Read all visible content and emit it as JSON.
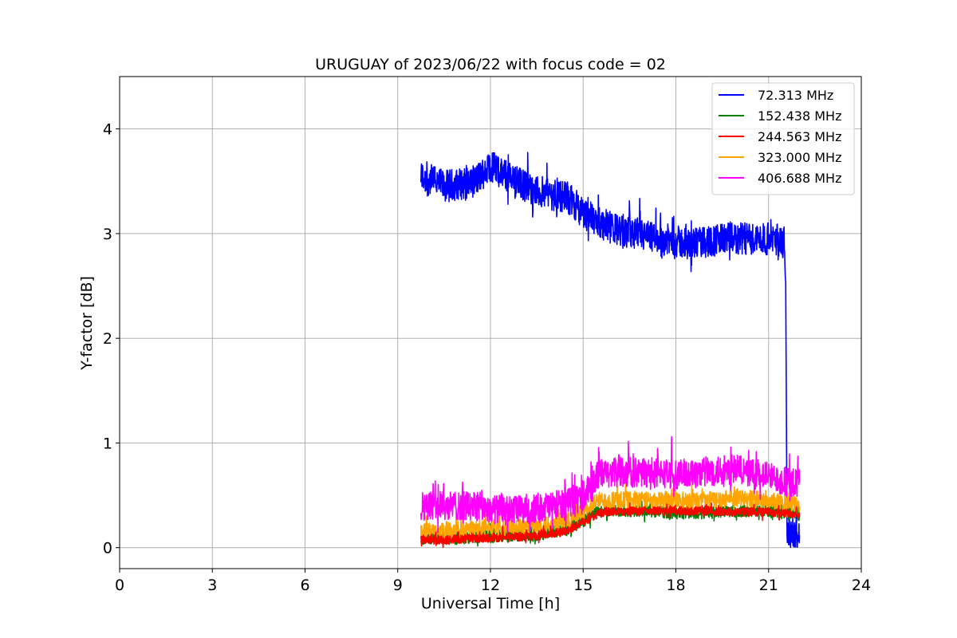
{
  "chart_data": {
    "type": "line",
    "title": "URUGUAY of 2023/06/22 with focus code = 02",
    "xlabel": "Universal Time [h]",
    "ylabel": "Y-factor [dB]",
    "xlim": [
      0,
      24
    ],
    "ylim": [
      -0.2,
      4.5
    ],
    "xticks": [
      0,
      3,
      6,
      9,
      12,
      15,
      18,
      21,
      24
    ],
    "yticks": [
      0,
      1,
      2,
      3,
      4
    ],
    "grid": true,
    "legend_position": "top-right",
    "series": [
      {
        "name": " 72.313 MHz",
        "color": "#0000ff",
        "noise": 0.22,
        "x": [
          9.75,
          10.5,
          11.5,
          12.0,
          12.5,
          13.5,
          14.5,
          15.0,
          15.5,
          16.5,
          17.5,
          18.5,
          19.5,
          20.5,
          21.5,
          21.55,
          21.6,
          21.65,
          22.0
        ],
        "y": [
          3.55,
          3.45,
          3.5,
          3.65,
          3.55,
          3.4,
          3.35,
          3.2,
          3.1,
          3.0,
          2.95,
          2.9,
          2.95,
          2.95,
          2.95,
          2.6,
          0.1,
          0.15,
          0.1
        ]
      },
      {
        "name": "152.438 MHz",
        "color": "#008000",
        "noise": 0.08,
        "x": [
          9.75,
          10.5,
          11.5,
          12.5,
          13.5,
          14.5,
          15.0,
          15.5,
          16.0,
          17.0,
          18.0,
          19.0,
          20.0,
          21.0,
          22.0
        ],
        "y": [
          0.1,
          0.08,
          0.1,
          0.12,
          0.12,
          0.18,
          0.25,
          0.35,
          0.35,
          0.35,
          0.33,
          0.33,
          0.35,
          0.35,
          0.33
        ]
      },
      {
        "name": "244.563 MHz",
        "color": "#ff0000",
        "noise": 0.06,
        "x": [
          9.75,
          10.5,
          11.5,
          12.5,
          13.5,
          14.5,
          15.0,
          15.5,
          16.0,
          17.0,
          18.0,
          19.0,
          20.0,
          21.0,
          22.0
        ],
        "y": [
          0.08,
          0.07,
          0.09,
          0.1,
          0.11,
          0.16,
          0.25,
          0.33,
          0.35,
          0.35,
          0.35,
          0.35,
          0.34,
          0.34,
          0.32
        ]
      },
      {
        "name": "323.000 MHz",
        "color": "#ffa500",
        "noise": 0.12,
        "x": [
          9.75,
          10.5,
          11.5,
          12.5,
          13.5,
          14.5,
          15.0,
          15.5,
          16.0,
          17.0,
          18.0,
          19.0,
          20.0,
          21.0,
          22.0
        ],
        "y": [
          0.15,
          0.15,
          0.18,
          0.2,
          0.2,
          0.25,
          0.35,
          0.45,
          0.45,
          0.45,
          0.45,
          0.45,
          0.48,
          0.45,
          0.4
        ]
      },
      {
        "name": "406.688 MHz",
        "color": "#ff00ff",
        "noise": 0.2,
        "x": [
          9.75,
          10.5,
          11.5,
          12.5,
          13.5,
          14.5,
          15.0,
          15.5,
          16.0,
          17.0,
          18.0,
          19.0,
          20.0,
          21.0,
          22.0
        ],
        "y": [
          0.4,
          0.4,
          0.4,
          0.35,
          0.38,
          0.42,
          0.5,
          0.7,
          0.72,
          0.72,
          0.7,
          0.72,
          0.75,
          0.68,
          0.6
        ]
      }
    ]
  }
}
